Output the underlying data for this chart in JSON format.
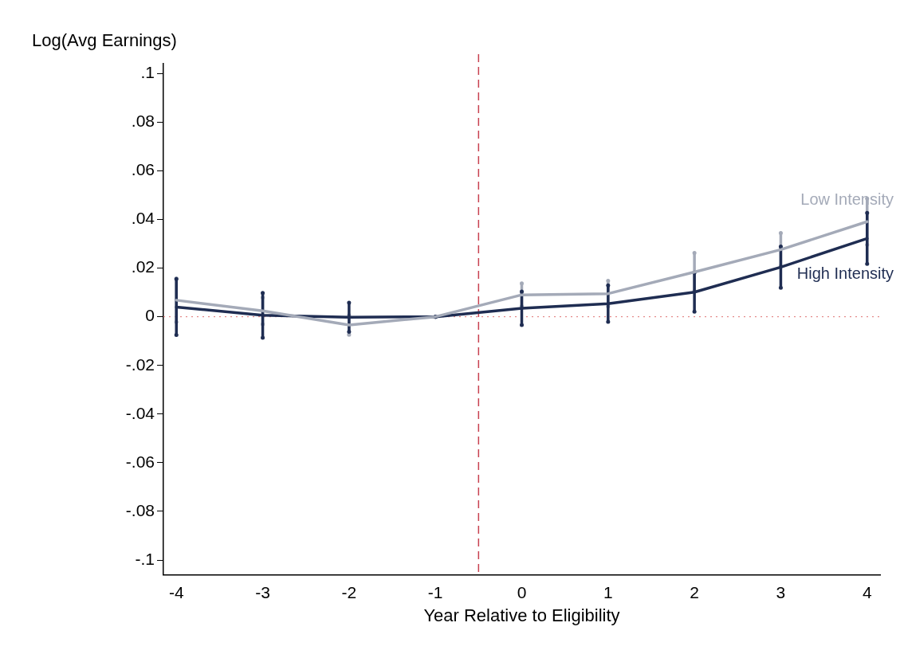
{
  "chart_data": {
    "type": "line",
    "xlabel": "Year Relative to Eligibility",
    "ylabel": "Log(Avg Earnings)",
    "x": [
      -4,
      -3,
      -2,
      -1,
      0,
      1,
      2,
      3,
      4
    ],
    "series": [
      {
        "name": "Low Intensity",
        "color": "#a4aab8",
        "values": [
          0.0068,
          0.0024,
          -0.0034,
          0,
          0.009,
          0.0095,
          0.0184,
          0.0276,
          0.0391
        ],
        "errors": [
          0.009,
          0.0055,
          0.004,
          0,
          0.0047,
          0.0053,
          0.0078,
          0.0068,
          0.0095
        ]
      },
      {
        "name": "High Intensity",
        "color": "#1f2d52",
        "values": [
          0.004,
          0.0006,
          -0.0002,
          0,
          0.0035,
          0.0054,
          0.0101,
          0.0204,
          0.0322
        ],
        "errors": [
          0.0115,
          0.0092,
          0.006,
          0,
          0.0069,
          0.0075,
          0.008,
          0.0085,
          0.0105
        ]
      }
    ],
    "xlim": [
      -4.15,
      4.15
    ],
    "xticks": [
      -4,
      -3,
      -2,
      -1,
      0,
      1,
      2,
      3,
      4
    ],
    "ylim": [
      -0.106,
      0.104
    ],
    "yticks": [
      {
        "value": -0.1,
        "label": "-.1"
      },
      {
        "value": -0.08,
        "label": "-.08"
      },
      {
        "value": -0.06,
        "label": "-.06"
      },
      {
        "value": -0.04,
        "label": "-.04"
      },
      {
        "value": -0.02,
        "label": "-.02"
      },
      {
        "value": 0,
        "label": "0"
      },
      {
        "value": 0.02,
        "label": ".02"
      },
      {
        "value": 0.04,
        "label": ".04"
      },
      {
        "value": 0.06,
        "label": ".06"
      },
      {
        "value": 0.08,
        "label": ".08"
      },
      {
        "value": 0.1,
        "label": ".1"
      }
    ],
    "ref_lines": [
      {
        "axis": "x",
        "value": -0.5,
        "color": "#c8404f",
        "line_style": "dashed"
      },
      {
        "axis": "y",
        "value": 0,
        "color": "#e07070",
        "line_style": "dotted"
      }
    ],
    "grid": false,
    "legend": false,
    "marker": "none",
    "line_style": "solid"
  }
}
